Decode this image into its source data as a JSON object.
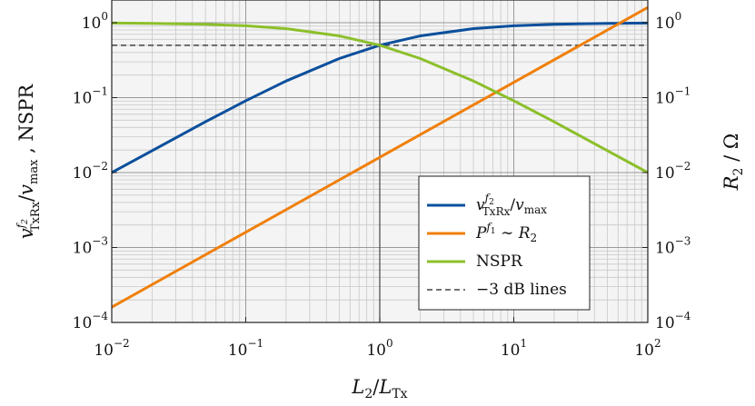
{
  "chart_data": {
    "type": "line",
    "xscale": "log",
    "yscale": "log",
    "xlim": [
      0.01,
      100
    ],
    "ylim": [
      0.0001,
      2
    ],
    "grid": true,
    "legend_position": "bottom-right",
    "xlabel": "L₂/L_Tx",
    "ylabel_left": "v^{f₂}_TxRx/v_max , NSPR",
    "ylabel_right": "R₂ / Ω",
    "x_ticks": [
      {
        "base": "10",
        "exp": "−2"
      },
      {
        "base": "10",
        "exp": "−1"
      },
      {
        "base": "10",
        "exp": "0"
      },
      {
        "base": "10",
        "exp": "1"
      },
      {
        "base": "10",
        "exp": "2"
      }
    ],
    "y_ticks": [
      {
        "base": "10",
        "exp": "−4"
      },
      {
        "base": "10",
        "exp": "−3"
      },
      {
        "base": "10",
        "exp": "−2"
      },
      {
        "base": "10",
        "exp": "−1"
      },
      {
        "base": "10",
        "exp": "0"
      }
    ],
    "reference_line_y": 0.5,
    "series": [
      {
        "name": "v^{f₂}_TxRx/v_max",
        "color": "#0b4f9c",
        "x": [
          0.01,
          0.02,
          0.05,
          0.1,
          0.2,
          0.5,
          1,
          2,
          5,
          10,
          20,
          50,
          100
        ],
        "y": [
          0.01,
          0.0196,
          0.0476,
          0.0909,
          0.1667,
          0.3333,
          0.5,
          0.6667,
          0.8333,
          0.9091,
          0.9524,
          0.9804,
          0.9901
        ]
      },
      {
        "name": "P^{f₁} ∼ R₂",
        "color": "#f07f09",
        "x": [
          0.01,
          0.1,
          1,
          10,
          100
        ],
        "y": [
          0.00016,
          0.0016,
          0.016,
          0.16,
          1.6
        ]
      },
      {
        "name": "NSPR",
        "color": "#8cbf2a",
        "x": [
          0.01,
          0.02,
          0.05,
          0.1,
          0.2,
          0.5,
          1,
          2,
          5,
          10,
          20,
          50,
          100
        ],
        "y": [
          0.9901,
          0.9804,
          0.9524,
          0.9091,
          0.8333,
          0.6667,
          0.5,
          0.3333,
          0.1667,
          0.0909,
          0.0476,
          0.0196,
          0.01
        ]
      },
      {
        "name": "−3 dB lines",
        "color": "#444444",
        "dashed": true
      }
    ]
  }
}
